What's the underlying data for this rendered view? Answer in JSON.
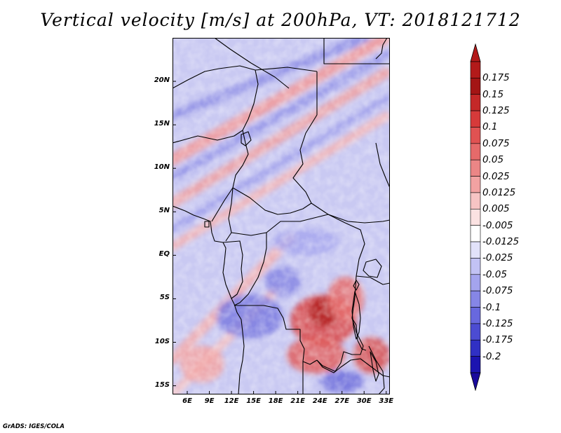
{
  "figure": {
    "title": "Vertical velocity [m/s] at 200hPa, VT: 2018121712",
    "credit": "GrADS: IGES/COLA",
    "variable": "Vertical velocity",
    "units": "m/s",
    "level": "200hPa",
    "valid_time": "2018121712"
  },
  "map": {
    "region": "Central Africa",
    "lat_range": [
      -16,
      25
    ],
    "lon_range": [
      4,
      33.5
    ],
    "lat_ticks": [
      {
        "value": 20,
        "label": "20N"
      },
      {
        "value": 15,
        "label": "15N"
      },
      {
        "value": 10,
        "label": "10N"
      },
      {
        "value": 5,
        "label": "5N"
      },
      {
        "value": 0,
        "label": "EQ"
      },
      {
        "value": -5,
        "label": "5S"
      },
      {
        "value": -10,
        "label": "10S"
      },
      {
        "value": -15,
        "label": "15S"
      }
    ],
    "lon_ticks": [
      {
        "value": 6,
        "label": "6E"
      },
      {
        "value": 9,
        "label": "9E"
      },
      {
        "value": 12,
        "label": "12E"
      },
      {
        "value": 15,
        "label": "15E"
      },
      {
        "value": 18,
        "label": "18E"
      },
      {
        "value": 21,
        "label": "21E"
      },
      {
        "value": 24,
        "label": "24E"
      },
      {
        "value": 27,
        "label": "27E"
      },
      {
        "value": 30,
        "label": "30E"
      },
      {
        "value": 33,
        "label": "33E"
      }
    ],
    "boundary_color": "#000000",
    "field_features": [
      {
        "kind": "band",
        "lon1": 4,
        "lat1": 11,
        "lon2": 33,
        "lat2": 25,
        "color": "#f39a9a",
        "width_deg": 1.6
      },
      {
        "kind": "band",
        "lon1": 4,
        "lat1": 6,
        "lon2": 33,
        "lat2": 21,
        "color": "#f0a2a2",
        "width_deg": 1.4
      },
      {
        "kind": "band",
        "lon1": 4,
        "lat1": 1,
        "lon2": 33,
        "lat2": 16,
        "color": "#f5b4b4",
        "width_deg": 1.2
      },
      {
        "kind": "band",
        "lon1": 4,
        "lat1": 16,
        "lon2": 30,
        "lat2": 25,
        "color": "#8f8fe6",
        "width_deg": 1.3
      },
      {
        "kind": "band",
        "lon1": 4,
        "lat1": 9,
        "lon2": 33,
        "lat2": 23,
        "color": "#9595e8",
        "width_deg": 1.2
      },
      {
        "kind": "band",
        "lon1": 4,
        "lat1": 3,
        "lon2": 33,
        "lat2": 18,
        "color": "#a0a0ec",
        "width_deg": 1.1
      },
      {
        "kind": "band",
        "lon1": 4,
        "lat1": -12,
        "lon2": 20,
        "lat2": 2,
        "color": "#f4b0b0",
        "width_deg": 1.4
      },
      {
        "kind": "band",
        "lon1": 4,
        "lat1": -16,
        "lon2": 18,
        "lat2": -4,
        "color": "#f6c0c0",
        "width_deg": 1.2
      },
      {
        "kind": "blob",
        "lon": 24.5,
        "lat": -7.5,
        "rx": 4.5,
        "ry": 3.5,
        "color": "#d94a4a"
      },
      {
        "kind": "blob",
        "lon": 24.5,
        "lat": -6.5,
        "rx": 2.0,
        "ry": 2.0,
        "color": "#b32020"
      },
      {
        "kind": "blob",
        "lon": 23.5,
        "lat": -11.5,
        "rx": 4.0,
        "ry": 2.5,
        "color": "#e06060"
      },
      {
        "kind": "blob",
        "lon": 31.0,
        "lat": -11.5,
        "rx": 2.5,
        "ry": 2.5,
        "color": "#d85555"
      },
      {
        "kind": "blob",
        "lon": 27.5,
        "lat": -5.0,
        "rx": 2.5,
        "ry": 3.0,
        "color": "#e57070"
      },
      {
        "kind": "blob",
        "lon": 14.5,
        "lat": -7.0,
        "rx": 4.5,
        "ry": 3.0,
        "color": "#7d7de0"
      },
      {
        "kind": "blob",
        "lon": 19.0,
        "lat": -3.0,
        "rx": 2.5,
        "ry": 2.0,
        "color": "#8888e4"
      },
      {
        "kind": "blob",
        "lon": 27.0,
        "lat": -14.5,
        "rx": 3.0,
        "ry": 1.5,
        "color": "#7070dc"
      },
      {
        "kind": "blob",
        "lon": 8.0,
        "lat": -12.5,
        "rx": 3.0,
        "ry": 2.5,
        "color": "#f2a6a6"
      },
      {
        "kind": "blob",
        "lon": 22.0,
        "lat": 1.5,
        "rx": 4.5,
        "ry": 1.8,
        "color": "#a8a8ee"
      }
    ]
  },
  "colorbar": {
    "over_color": "#b21a1a",
    "under_color": "#1a0a9c",
    "levels": [
      {
        "label": "0.175",
        "value": 0.175,
        "color": "#a31515"
      },
      {
        "label": "0.15",
        "value": 0.15,
        "color": "#c42828"
      },
      {
        "label": "0.125",
        "value": 0.125,
        "color": "#d63a3a"
      },
      {
        "label": "0.1",
        "value": 0.1,
        "color": "#e05252"
      },
      {
        "label": "0.075",
        "value": 0.075,
        "color": "#e56a6a"
      },
      {
        "label": "0.05",
        "value": 0.05,
        "color": "#eb8686"
      },
      {
        "label": "0.025",
        "value": 0.025,
        "color": "#f2a2a2"
      },
      {
        "label": "0.0125",
        "value": 0.0125,
        "color": "#f7c4c4"
      },
      {
        "label": "0.005",
        "value": 0.005,
        "color": "#fbe2e2"
      },
      {
        "label": "-0.005",
        "value": -0.005,
        "color": "#ffffff"
      },
      {
        "label": "-0.0125",
        "value": -0.0125,
        "color": "#e2e2fa"
      },
      {
        "label": "-0.025",
        "value": -0.025,
        "color": "#c2c2f4"
      },
      {
        "label": "-0.05",
        "value": -0.05,
        "color": "#a4a4ee"
      },
      {
        "label": "-0.075",
        "value": -0.075,
        "color": "#8686e6"
      },
      {
        "label": "-0.1",
        "value": -0.1,
        "color": "#6868de"
      },
      {
        "label": "-0.125",
        "value": -0.125,
        "color": "#4c4cd2"
      },
      {
        "label": "-0.175",
        "value": -0.175,
        "color": "#3030c4"
      },
      {
        "label": "-0.2",
        "value": -0.2,
        "color": "#1c14b0"
      }
    ]
  }
}
